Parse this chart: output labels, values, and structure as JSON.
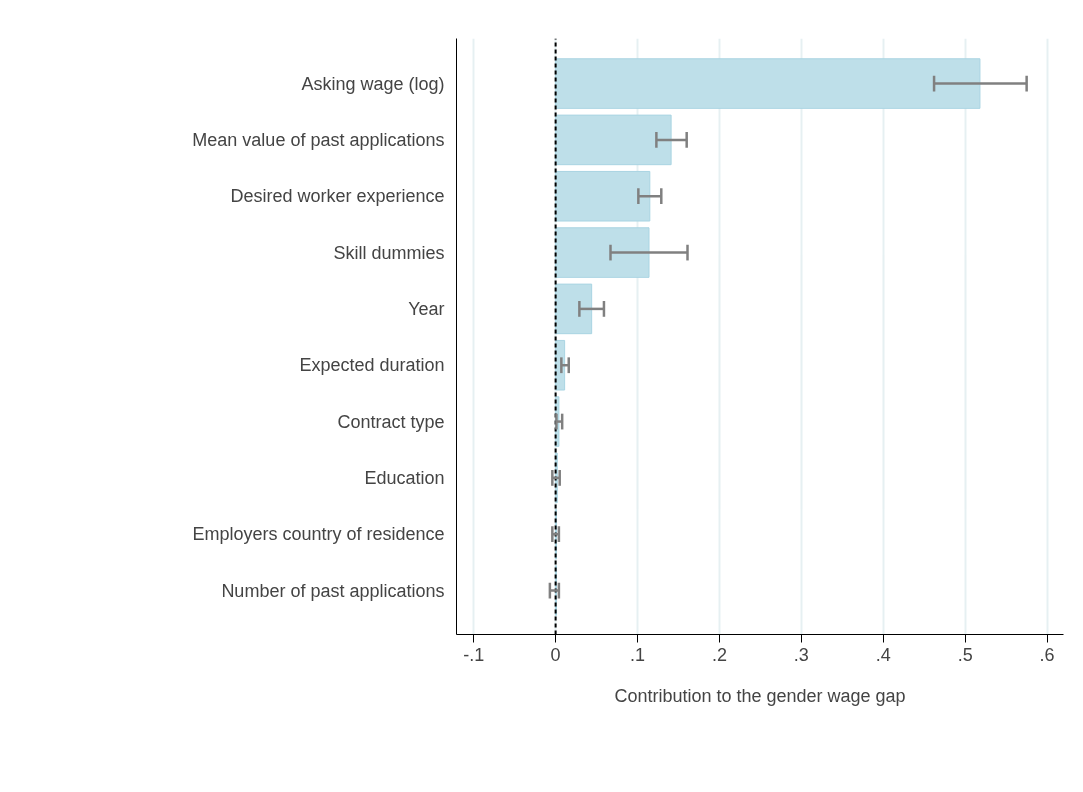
{
  "chart_data": {
    "type": "bar",
    "orientation": "horizontal",
    "xlabel": "Contribution to the gender wage gap",
    "categories": [
      "Asking wage (log)",
      "Mean value of past applications",
      "Desired worker experience",
      "Skill dummies",
      "Year",
      "Expected duration",
      "Contract type",
      "Education",
      "Employers country of residence",
      "Number of past applications"
    ],
    "values": [
      0.518,
      0.141,
      0.115,
      0.114,
      0.044,
      0.011,
      0.004,
      0.002,
      0.001,
      0.001
    ],
    "errors": [
      [
        0.462,
        0.575
      ],
      [
        0.123,
        0.16
      ],
      [
        0.101,
        0.129
      ],
      [
        0.067,
        0.161
      ],
      [
        0.029,
        0.059
      ],
      [
        0.007,
        0.016
      ],
      [
        0.001,
        0.008
      ],
      [
        -0.004,
        0.005
      ],
      [
        -0.004,
        0.004
      ],
      [
        -0.007,
        0.004
      ]
    ],
    "color": "#bedfe9",
    "xlim": [
      -0.121,
      0.62
    ],
    "xticks": [
      {
        "value": -0.1,
        "label": "-.1"
      },
      0,
      {
        "value": 0.1,
        "label": ".1"
      },
      {
        "value": 0.2,
        "label": ".2"
      },
      {
        "value": 0.3,
        "label": ".3"
      },
      {
        "value": 0.4,
        "label": ".4"
      },
      {
        "value": 0.5,
        "label": ".5"
      },
      {
        "value": 0.6,
        "label": ".6"
      }
    ],
    "grid": "x",
    "ref_lines": [
      {
        "axis": "x",
        "value": 0,
        "color": "#000000",
        "line_style": "dashed"
      }
    ]
  }
}
